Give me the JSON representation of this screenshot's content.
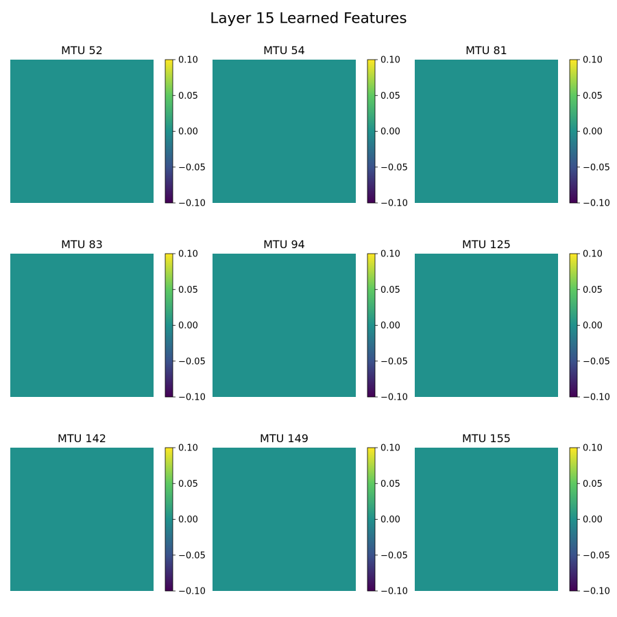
{
  "figure": {
    "title": "Layer 15 Learned Features"
  },
  "colormap": {
    "name": "viridis",
    "stops": [
      "#440154",
      "#3b528b",
      "#21918c",
      "#5ec962",
      "#fde725"
    ]
  },
  "chart_data": [
    {
      "type": "heatmap",
      "title": "MTU 52",
      "values": [
        [
          0.0
        ]
      ],
      "colorbar": {
        "clim": [
          -0.1,
          0.1
        ],
        "ticks": [
          0.1,
          0.05,
          0.0,
          -0.05,
          -0.1
        ],
        "tick_labels": [
          "0.10",
          "0.05",
          "0.00",
          "−0.05",
          "−0.10"
        ]
      },
      "cell_color": "#21918c",
      "xlabel": "",
      "ylabel": "",
      "grid": false
    },
    {
      "type": "heatmap",
      "title": "MTU 54",
      "values": [
        [
          0.0
        ]
      ],
      "colorbar": {
        "clim": [
          -0.1,
          0.1
        ],
        "ticks": [
          0.1,
          0.05,
          0.0,
          -0.05,
          -0.1
        ],
        "tick_labels": [
          "0.10",
          "0.05",
          "0.00",
          "−0.05",
          "−0.10"
        ]
      },
      "cell_color": "#21918c",
      "xlabel": "",
      "ylabel": "",
      "grid": false
    },
    {
      "type": "heatmap",
      "title": "MTU 81",
      "values": [
        [
          0.0
        ]
      ],
      "colorbar": {
        "clim": [
          -0.1,
          0.1
        ],
        "ticks": [
          0.1,
          0.05,
          0.0,
          -0.05,
          -0.1
        ],
        "tick_labels": [
          "0.10",
          "0.05",
          "0.00",
          "−0.05",
          "−0.10"
        ]
      },
      "cell_color": "#21918c",
      "xlabel": "",
      "ylabel": "",
      "grid": false
    },
    {
      "type": "heatmap",
      "title": "MTU 83",
      "values": [
        [
          0.0
        ]
      ],
      "colorbar": {
        "clim": [
          -0.1,
          0.1
        ],
        "ticks": [
          0.1,
          0.05,
          0.0,
          -0.05,
          -0.1
        ],
        "tick_labels": [
          "0.10",
          "0.05",
          "0.00",
          "−0.05",
          "−0.10"
        ]
      },
      "cell_color": "#21918c",
      "xlabel": "",
      "ylabel": "",
      "grid": false
    },
    {
      "type": "heatmap",
      "title": "MTU 94",
      "values": [
        [
          0.0
        ]
      ],
      "colorbar": {
        "clim": [
          -0.1,
          0.1
        ],
        "ticks": [
          0.1,
          0.05,
          0.0,
          -0.05,
          -0.1
        ],
        "tick_labels": [
          "0.10",
          "0.05",
          "0.00",
          "−0.05",
          "−0.10"
        ]
      },
      "cell_color": "#21918c",
      "xlabel": "",
      "ylabel": "",
      "grid": false
    },
    {
      "type": "heatmap",
      "title": "MTU 125",
      "values": [
        [
          0.0
        ]
      ],
      "colorbar": {
        "clim": [
          -0.1,
          0.1
        ],
        "ticks": [
          0.1,
          0.05,
          0.0,
          -0.05,
          -0.1
        ],
        "tick_labels": [
          "0.10",
          "0.05",
          "0.00",
          "−0.05",
          "−0.10"
        ]
      },
      "cell_color": "#21918c",
      "xlabel": "",
      "ylabel": "",
      "grid": false
    },
    {
      "type": "heatmap",
      "title": "MTU 142",
      "values": [
        [
          0.0
        ]
      ],
      "colorbar": {
        "clim": [
          -0.1,
          0.1
        ],
        "ticks": [
          0.1,
          0.05,
          0.0,
          -0.05,
          -0.1
        ],
        "tick_labels": [
          "0.10",
          "0.05",
          "0.00",
          "−0.05",
          "−0.10"
        ]
      },
      "cell_color": "#21918c",
      "xlabel": "",
      "ylabel": "",
      "grid": false
    },
    {
      "type": "heatmap",
      "title": "MTU 149",
      "values": [
        [
          0.0
        ]
      ],
      "colorbar": {
        "clim": [
          -0.1,
          0.1
        ],
        "ticks": [
          0.1,
          0.05,
          0.0,
          -0.05,
          -0.1
        ],
        "tick_labels": [
          "0.10",
          "0.05",
          "0.00",
          "−0.05",
          "−0.10"
        ]
      },
      "cell_color": "#21918c",
      "xlabel": "",
      "ylabel": "",
      "grid": false
    },
    {
      "type": "heatmap",
      "title": "MTU 155",
      "values": [
        [
          0.0
        ]
      ],
      "colorbar": {
        "clim": [
          -0.1,
          0.1
        ],
        "ticks": [
          0.1,
          0.05,
          0.0,
          -0.05,
          -0.1
        ],
        "tick_labels": [
          "0.10",
          "0.05",
          "0.00",
          "−0.05",
          "−0.10"
        ]
      },
      "cell_color": "#21918c",
      "xlabel": "",
      "ylabel": "",
      "grid": false
    }
  ]
}
